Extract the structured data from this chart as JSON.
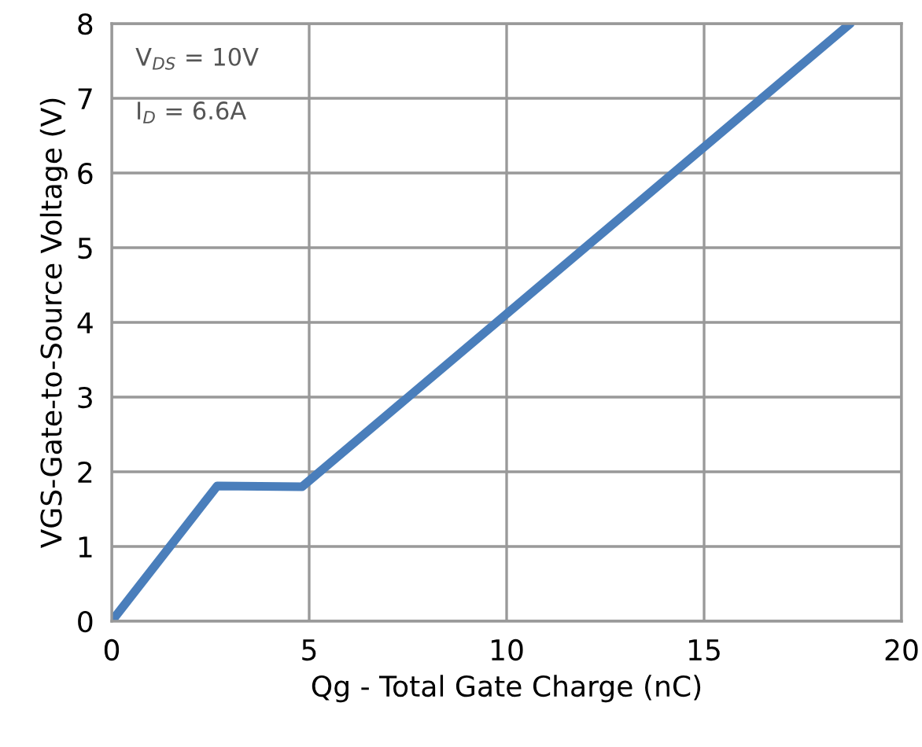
{
  "chart_data": {
    "type": "line",
    "xlabel": "Qg - Total Gate Charge (nC)",
    "ylabel": "VGS-Gate-to-Source Voltage (V)",
    "x": [
      0,
      2.67,
      4.82,
      18.7
    ],
    "series": [
      {
        "color": "#4a7ebb",
        "values": [
          0,
          1.81,
          1.8,
          8
        ]
      }
    ],
    "xlim": [
      0,
      20
    ],
    "ylim": [
      0,
      8
    ],
    "xticks": [
      0,
      5,
      10,
      15,
      20
    ],
    "yticks": [
      0,
      1,
      2,
      3,
      4,
      5,
      6,
      7,
      8
    ],
    "grid": true,
    "annotations": [
      "V$_{DS}$ = 10V",
      "I$_{D}$ = 6.6A"
    ]
  }
}
